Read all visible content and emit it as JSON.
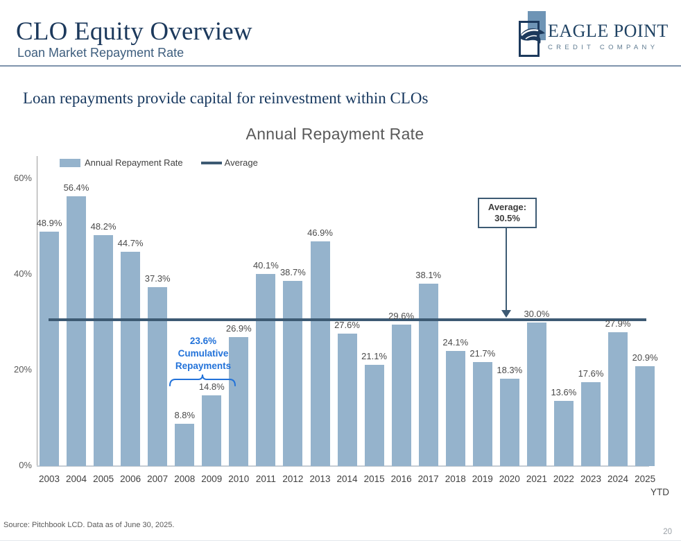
{
  "header": {
    "title": "CLO Equity Overview",
    "subtitle": "Loan Market Repayment Rate"
  },
  "logo": {
    "name": "EAGLE POINT",
    "tagline": "CREDIT COMPANY"
  },
  "statement": "Loan repayments provide capital for reinvestment within CLOs",
  "chart_data": {
    "type": "bar",
    "title": "Annual Repayment Rate",
    "categories": [
      "2003",
      "2004",
      "2005",
      "2006",
      "2007",
      "2008",
      "2009",
      "2010",
      "2011",
      "2012",
      "2013",
      "2014",
      "2015",
      "2016",
      "2017",
      "2018",
      "2019",
      "2020",
      "2021",
      "2022",
      "2023",
      "2024",
      "2025"
    ],
    "values": [
      48.9,
      56.4,
      48.2,
      44.7,
      37.3,
      8.8,
      14.8,
      26.9,
      40.1,
      38.7,
      46.9,
      27.6,
      21.1,
      29.6,
      38.1,
      24.1,
      21.7,
      18.3,
      30.0,
      13.6,
      17.6,
      27.9,
      20.9
    ],
    "labels": [
      "48.9%",
      "56.4%",
      "48.2%",
      "44.7%",
      "37.3%",
      "8.8%",
      "14.8%",
      "26.9%",
      "40.1%",
      "38.7%",
      "46.9%",
      "27.6%",
      "21.1%",
      "29.6%",
      "38.1%",
      "24.1%",
      "21.7%",
      "18.3%",
      "30.0%",
      "13.6%",
      "17.6%",
      "27.9%",
      "20.9%"
    ],
    "last_category_sublabel": "YTD",
    "average": 30.5,
    "xlabel": "",
    "ylabel": "",
    "ylim": [
      0,
      65
    ],
    "grid": "off",
    "yticks": [
      {
        "value": 0,
        "label": "0%"
      },
      {
        "value": 20,
        "label": "20%"
      },
      {
        "value": 40,
        "label": "40%"
      },
      {
        "value": 60,
        "label": "60%"
      }
    ],
    "legend": [
      {
        "type": "bar",
        "label": "Annual Repayment Rate"
      },
      {
        "type": "line",
        "label": "Average"
      }
    ],
    "annotations": {
      "average_box": {
        "line1": "Average:",
        "line2": "30.5%"
      },
      "cumulative": {
        "lines": [
          "23.6%",
          "Cumulative",
          "Repayments"
        ],
        "span": [
          "2008",
          "2009"
        ]
      }
    },
    "colors": {
      "bar": "#95b3cc",
      "average_line": "#3d5a73",
      "annotation_blue": "#2272d9",
      "title_navy": "#1c395c"
    }
  },
  "footer": {
    "source": "Source: Pitchbook LCD. Data as of June 30, 2025.",
    "page_number": "20"
  }
}
